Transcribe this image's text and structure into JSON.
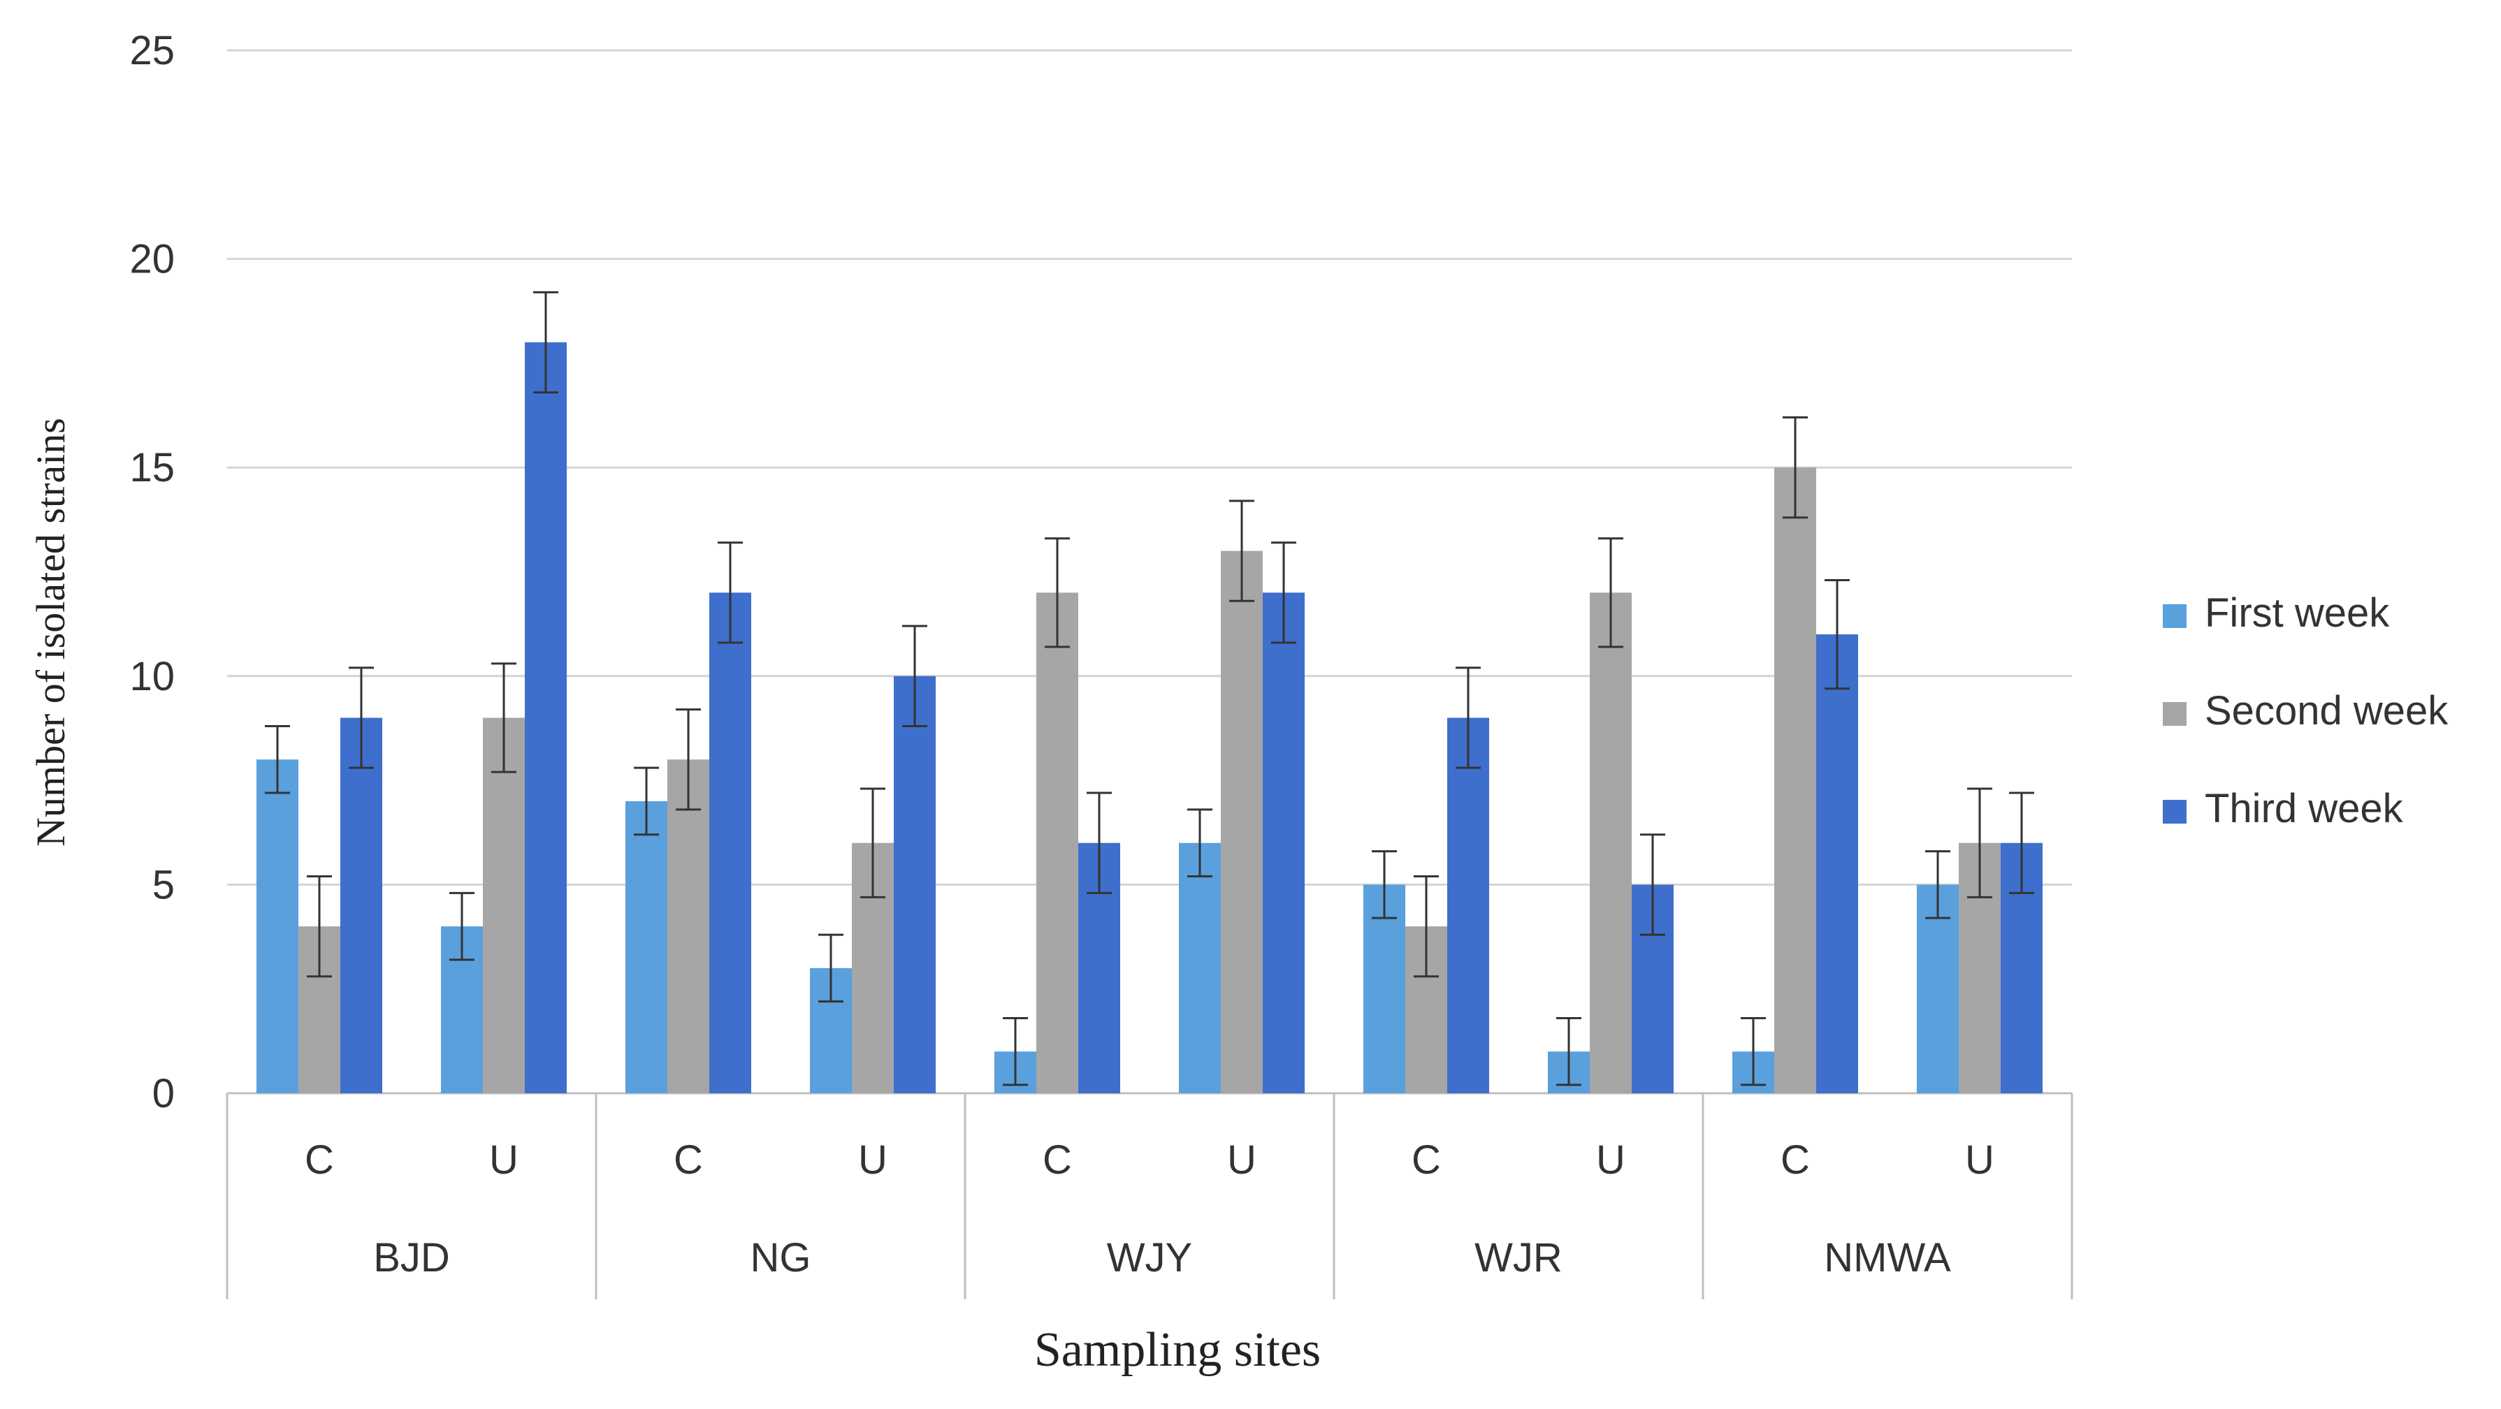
{
  "chart_data": {
    "type": "bar",
    "title": "",
    "xlabel": "Sampling sites",
    "ylabel": "Number of isolated strains",
    "ylim": [
      0,
      25
    ],
    "yticks": [
      "0",
      "5",
      "10",
      "15",
      "20",
      "25"
    ],
    "groups": [
      {
        "name": "BJD",
        "subs": [
          "C",
          "U"
        ]
      },
      {
        "name": "NG",
        "subs": [
          "C",
          "U"
        ]
      },
      {
        "name": "WJY",
        "subs": [
          "C",
          "U"
        ]
      },
      {
        "name": "WJR",
        "subs": [
          "C",
          "U"
        ]
      },
      {
        "name": "NMWA",
        "subs": [
          "C",
          "U"
        ]
      }
    ],
    "categories": [
      "BJD-C",
      "BJD-U",
      "NG-C",
      "NG-U",
      "WJY-C",
      "WJY-U",
      "WJR-C",
      "WJR-U",
      "NMWA-C",
      "NMWA-U"
    ],
    "series": [
      {
        "name": "First week",
        "color": "#5aa0dc",
        "values": [
          8,
          4,
          7,
          3,
          1,
          6,
          5,
          1,
          1,
          5
        ],
        "errors": [
          0.8,
          0.8,
          0.8,
          0.8,
          0.8,
          0.8,
          0.8,
          0.8,
          0.8,
          0.8
        ]
      },
      {
        "name": "Second week",
        "color": "#a6a6a6",
        "values": [
          4,
          9,
          8,
          6,
          12,
          13,
          4,
          12,
          15,
          6
        ],
        "errors": [
          1.2,
          1.3,
          1.2,
          1.3,
          1.3,
          1.2,
          1.2,
          1.3,
          1.2,
          1.3
        ]
      },
      {
        "name": "Third week",
        "color": "#3f6fcc",
        "values": [
          9,
          18,
          12,
          10,
          6,
          12,
          9,
          5,
          11,
          6
        ],
        "errors": [
          1.2,
          1.2,
          1.2,
          1.2,
          1.2,
          1.2,
          1.2,
          1.2,
          1.3,
          1.2
        ]
      }
    ],
    "grid": true,
    "legend_position": "right"
  }
}
